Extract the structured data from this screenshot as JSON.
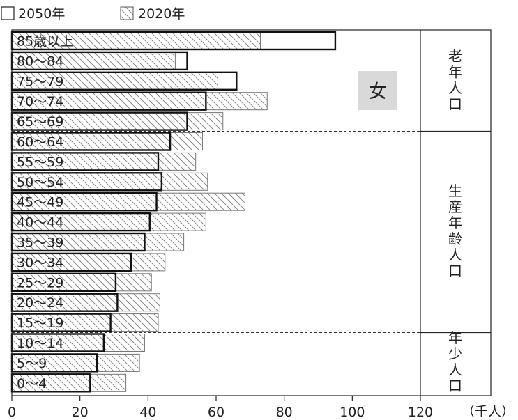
{
  "chart_data": {
    "type": "bar",
    "orientation": "horizontal",
    "legend": {
      "placement": "top-left",
      "entries": [
        {
          "label": "2050年",
          "style": "outline"
        },
        {
          "label": "2020年",
          "style": "hatched"
        }
      ]
    },
    "panel_label": "女",
    "x_unit_label": "（千人）",
    "xlim": [
      0,
      120
    ],
    "x_ticks": [
      "0",
      "20",
      "40",
      "60",
      "80",
      "100",
      "120"
    ],
    "categories": [
      "85歳以上",
      "80～84",
      "75～79",
      "70～74",
      "65～69",
      "60～64",
      "55～59",
      "50～54",
      "45～49",
      "40～44",
      "35～39",
      "30～34",
      "25～29",
      "20～24",
      "15～19",
      "10～14",
      "5～9",
      "0～4"
    ],
    "series": [
      {
        "name": "2050年",
        "values": [
          95.0,
          51.5,
          66.0,
          57.0,
          51.5,
          46.5,
          43.0,
          44.0,
          42.5,
          40.5,
          39.0,
          35.0,
          30.5,
          31.0,
          29.0,
          27.0,
          25.0,
          23.0
        ]
      },
      {
        "name": "2020年",
        "values": [
          73.0,
          48.0,
          60.5,
          75.0,
          62.0,
          56.0,
          54.0,
          57.5,
          68.5,
          57.0,
          50.5,
          45.0,
          41.0,
          43.5,
          43.0,
          39.0,
          37.5,
          33.5
        ]
      }
    ],
    "groups": [
      {
        "label": "老年人口",
        "from": "65～69",
        "to": "85歳以上"
      },
      {
        "label": "生産年齢人口",
        "from": "15～19",
        "to": "60～64"
      },
      {
        "label": "年少人口",
        "from": "0～4",
        "to": "10～14"
      }
    ],
    "grid": false
  }
}
